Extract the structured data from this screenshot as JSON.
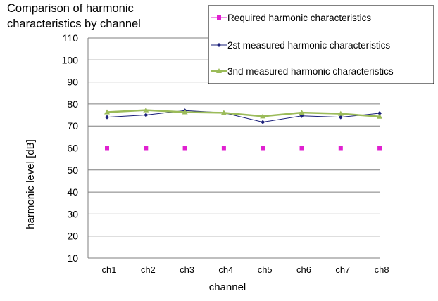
{
  "chart_data": {
    "type": "line",
    "title_lines": [
      "Comparison of harmonic",
      "characteristics by channel"
    ],
    "xlabel": "channel",
    "ylabel": "harmonic level  [dB]",
    "categories": [
      "ch1",
      "ch2",
      "ch3",
      "ch4",
      "ch5",
      "ch6",
      "ch7",
      "ch8"
    ],
    "ylim": [
      10,
      110
    ],
    "yticks": [
      10,
      20,
      30,
      40,
      50,
      60,
      70,
      80,
      90,
      100,
      110
    ],
    "grid": true,
    "legend_position": "top-right",
    "series": [
      {
        "name": "Required harmonic characteristics",
        "color": "#e020d0",
        "marker": "square",
        "values": [
          60,
          60,
          60,
          60,
          60,
          60,
          60,
          60
        ]
      },
      {
        "name": "2st measured harmonic characteristics",
        "color": "#1a1f7a",
        "marker": "diamond",
        "values": [
          74,
          75,
          77,
          76,
          71.8,
          74.6,
          74,
          75.8
        ]
      },
      {
        "name": "3nd measured harmonic characteristics",
        "color": "#9bbb59",
        "marker": "triangle",
        "values": [
          76.3,
          77.2,
          76.3,
          76,
          74.4,
          76.1,
          75.6,
          74.3
        ]
      }
    ]
  }
}
